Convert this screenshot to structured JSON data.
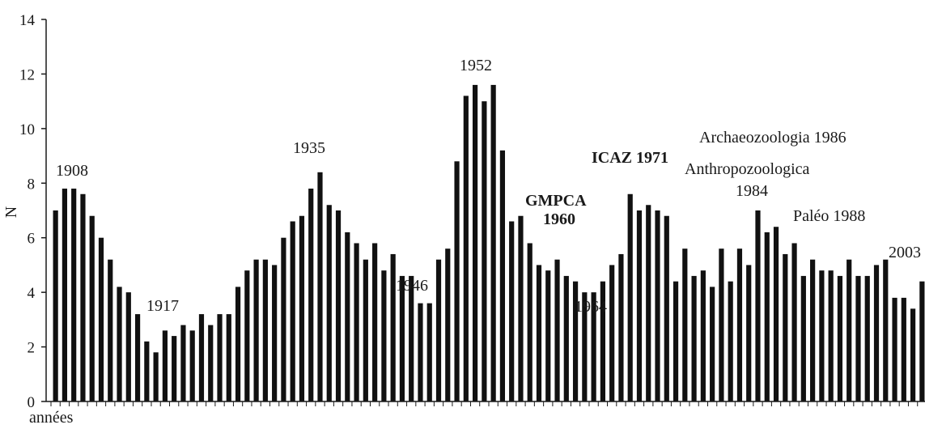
{
  "chart_data": {
    "type": "bar",
    "title": "",
    "xlabel": "années",
    "ylabel": "N",
    "ylim": [
      0,
      14
    ],
    "yticks": [
      0,
      2,
      4,
      6,
      8,
      10,
      12,
      14
    ],
    "start_year": 1905,
    "values": [
      7.0,
      7.8,
      7.8,
      7.6,
      6.8,
      6.0,
      5.2,
      4.2,
      4.0,
      3.2,
      2.2,
      1.8,
      2.6,
      2.4,
      2.8,
      2.6,
      3.2,
      2.8,
      3.2,
      3.2,
      4.2,
      4.8,
      5.2,
      5.2,
      5.0,
      6.0,
      6.6,
      6.8,
      7.8,
      8.4,
      7.2,
      7.0,
      6.2,
      5.8,
      5.2,
      5.8,
      4.8,
      5.4,
      4.6,
      4.6,
      3.6,
      3.6,
      5.2,
      5.6,
      8.8,
      11.2,
      11.6,
      11.0,
      11.6,
      9.2,
      6.6,
      6.8,
      5.8,
      5.0,
      4.8,
      5.2,
      4.6,
      4.4,
      4.0,
      4.0,
      4.4,
      5.0,
      5.4,
      7.6,
      7.0,
      7.2,
      7.0,
      6.8,
      4.4,
      5.6,
      4.6,
      4.8,
      4.2,
      5.6,
      4.4,
      5.6,
      5.0,
      7.0,
      6.2,
      6.4,
      5.4,
      5.8,
      4.6,
      5.2,
      4.8,
      4.8,
      4.6,
      5.2,
      4.6,
      4.6,
      5.0,
      5.2,
      3.8,
      3.8,
      3.4,
      4.4
    ],
    "annotations": [
      {
        "text": "1908",
        "bold": false
      },
      {
        "text": "1917",
        "bold": false
      },
      {
        "text": "1935",
        "bold": false
      },
      {
        "text": "1946",
        "bold": false
      },
      {
        "text": "1952",
        "bold": false
      },
      {
        "text": "GMPCA",
        "bold": true
      },
      {
        "text": "1960",
        "bold": true
      },
      {
        "text": "1964",
        "bold": false
      },
      {
        "text": "ICAZ 1971",
        "bold": true
      },
      {
        "text": "Archaeozoologia 1986",
        "bold": false
      },
      {
        "text": "Anthropozoologica",
        "bold": false
      },
      {
        "text": "1984",
        "bold": false
      },
      {
        "text": "Paléo 1988",
        "bold": false
      },
      {
        "text": "2003",
        "bold": false
      }
    ]
  }
}
